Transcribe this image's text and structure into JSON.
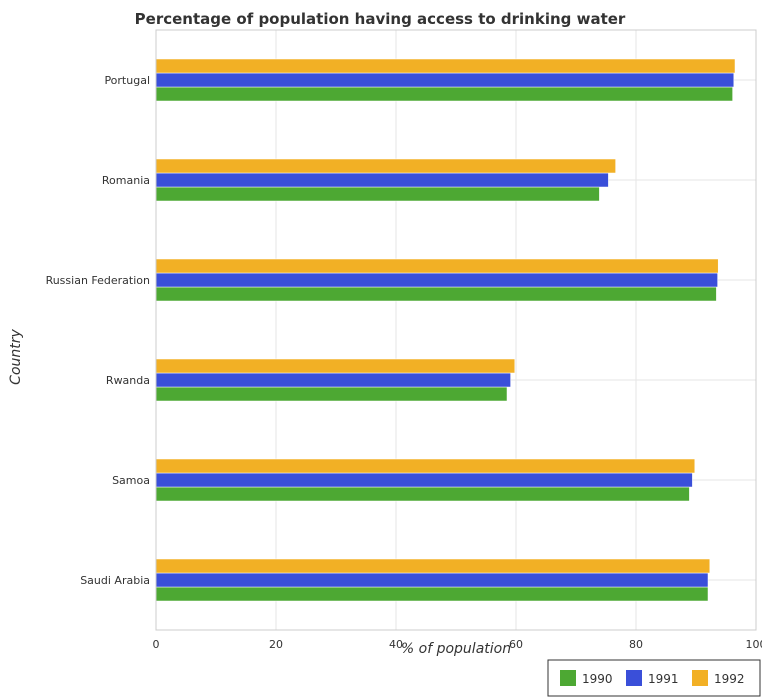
{
  "chart_data": {
    "type": "bar",
    "orientation": "horizontal",
    "title": "Percentage of population having access to drinking water",
    "xlabel": "% of population",
    "ylabel": "Country",
    "xlim": [
      0,
      100
    ],
    "x_ticks": [
      0,
      20,
      40,
      60,
      80,
      100
    ],
    "grid": true,
    "legend_position": "bottom-right",
    "categories": [
      "Portugal",
      "Romania",
      "Russian Federation",
      "Rwanda",
      "Samoa",
      "Saudi Arabia"
    ],
    "series": [
      {
        "name": "1990",
        "color": "#4da833",
        "values": [
          96.1,
          73.9,
          93.4,
          58.5,
          88.9,
          92.0
        ]
      },
      {
        "name": "1991",
        "color": "#3a4fd9",
        "values": [
          96.3,
          75.4,
          93.6,
          59.1,
          89.4,
          92.0
        ]
      },
      {
        "name": "1992",
        "color": "#f2b025",
        "values": [
          96.5,
          76.6,
          93.7,
          59.8,
          89.8,
          92.3
        ]
      }
    ]
  }
}
